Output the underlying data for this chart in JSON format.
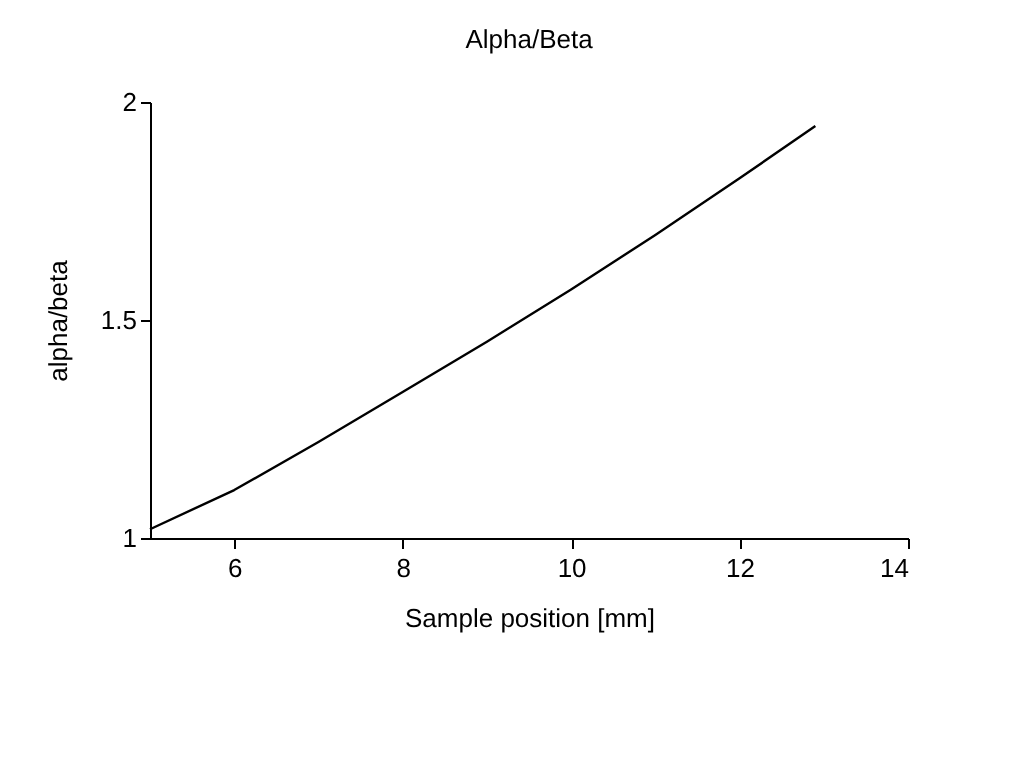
{
  "chart_data": {
    "type": "line",
    "title": "Alpha/Beta",
    "xlabel": "Sample position [mm]",
    "ylabel": "alpha/beta",
    "x": [
      5,
      6,
      7,
      8,
      9,
      10,
      11,
      12,
      12.9
    ],
    "series": [
      {
        "color": "#000000",
        "values": [
          1.02,
          1.11,
          1.22,
          1.335,
          1.45,
          1.57,
          1.695,
          1.825,
          1.945
        ]
      }
    ],
    "xlim": [
      5,
      14
    ],
    "xticks": [
      6,
      8,
      10,
      12,
      14
    ],
    "ylim": [
      1,
      2
    ],
    "yticks": [
      1,
      1.5,
      2
    ],
    "grid": false,
    "legend": false,
    "marker": "none",
    "line_style": "solid"
  }
}
